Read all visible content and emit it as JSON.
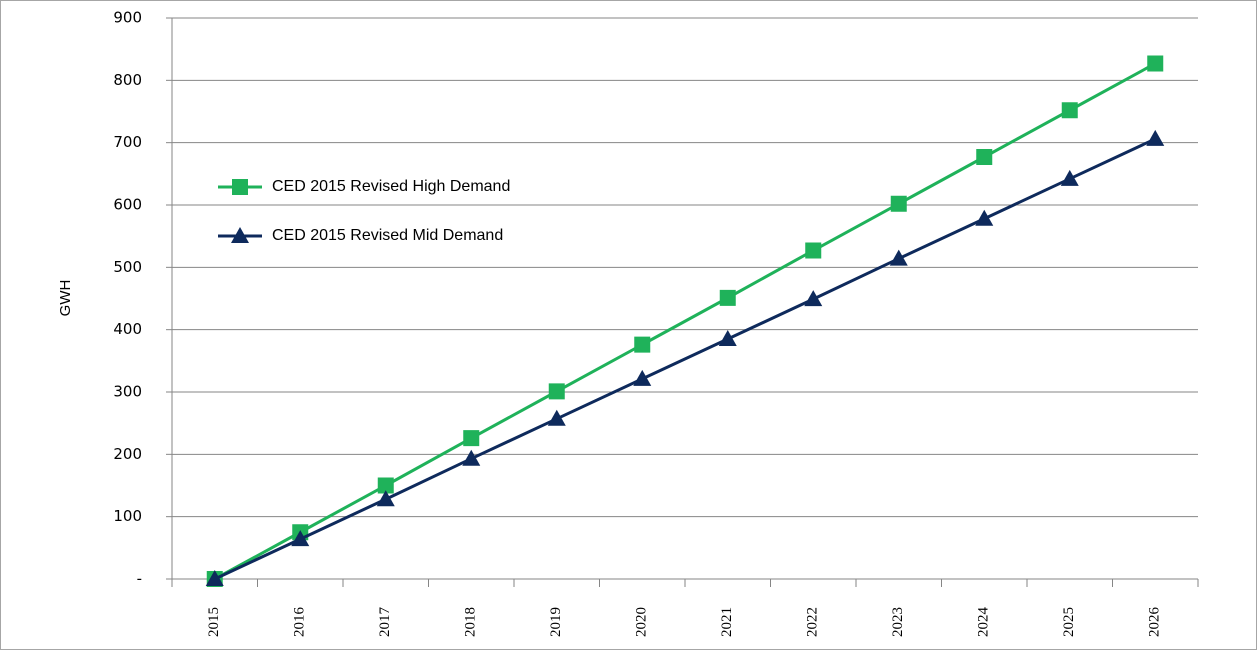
{
  "chart_data": {
    "type": "line",
    "y_label": "GWH",
    "categories": [
      "2015",
      "2016",
      "2017",
      "2018",
      "2019",
      "2020",
      "2021",
      "2022",
      "2023",
      "2024",
      "2025",
      "2026"
    ],
    "series": [
      {
        "name": "CED 2015 Revised  High Demand",
        "color": "#1fb25a",
        "marker": "square",
        "values": [
          0,
          75,
          150,
          226,
          301,
          376,
          451,
          527,
          602,
          677,
          752,
          827
        ]
      },
      {
        "name": "CED 2015 Revised  Mid Demand",
        "color": "#0e2a5c",
        "marker": "triangle",
        "values": [
          0,
          64,
          128,
          193,
          257,
          321,
          385,
          449,
          514,
          578,
          642,
          706
        ]
      }
    ],
    "ylim": [
      0,
      900
    ],
    "yticks": [
      {
        "value": 0,
        "label": "-"
      },
      100,
      200,
      300,
      400,
      500,
      600,
      700,
      800,
      900
    ],
    "grid": true,
    "legend": "left"
  }
}
